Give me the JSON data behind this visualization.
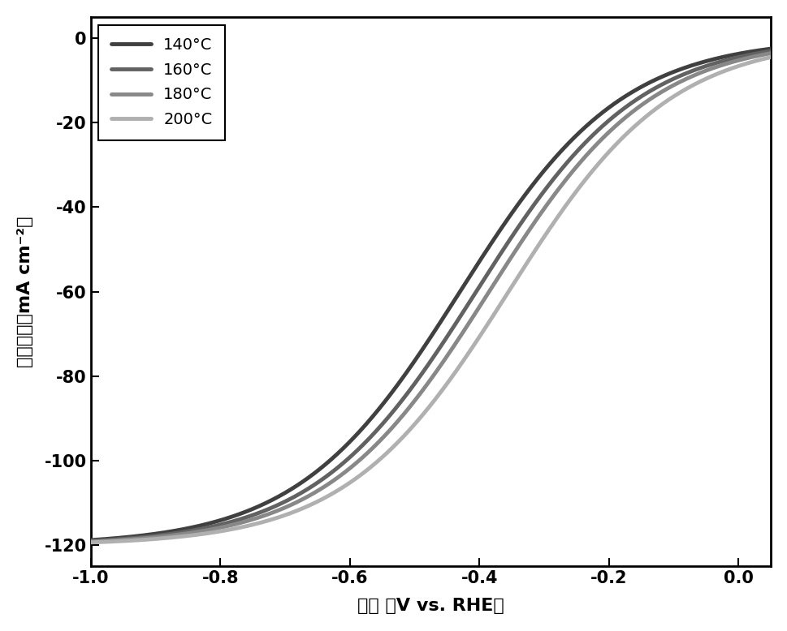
{
  "title": "",
  "xlabel": "电位 （V vs. RHE）",
  "ylabel": "电流密度（mA cm⁻²）",
  "xlim": [
    -1.0,
    0.05
  ],
  "ylim": [
    -125,
    5
  ],
  "xticks": [
    -1.0,
    -0.8,
    -0.6,
    -0.4,
    -0.2,
    0.0
  ],
  "yticks": [
    0,
    -20,
    -40,
    -60,
    -80,
    -100,
    -120
  ],
  "background_color": "#ffffff",
  "series": [
    {
      "label": "140°C",
      "color": "#404040",
      "linewidth": 3.5,
      "E_half": -0.43,
      "steepness": 8.0
    },
    {
      "label": "160°C",
      "color": "#626262",
      "linewidth": 3.5,
      "E_half": -0.405,
      "steepness": 8.0
    },
    {
      "label": "180°C",
      "color": "#888888",
      "linewidth": 3.5,
      "E_half": -0.385,
      "steepness": 8.0
    },
    {
      "label": "200°C",
      "color": "#b0b0b0",
      "linewidth": 3.5,
      "E_half": -0.355,
      "steepness": 8.0
    }
  ],
  "limit_current": -120,
  "legend_fontsize": 14,
  "axis_fontsize": 16,
  "tick_fontsize": 15
}
